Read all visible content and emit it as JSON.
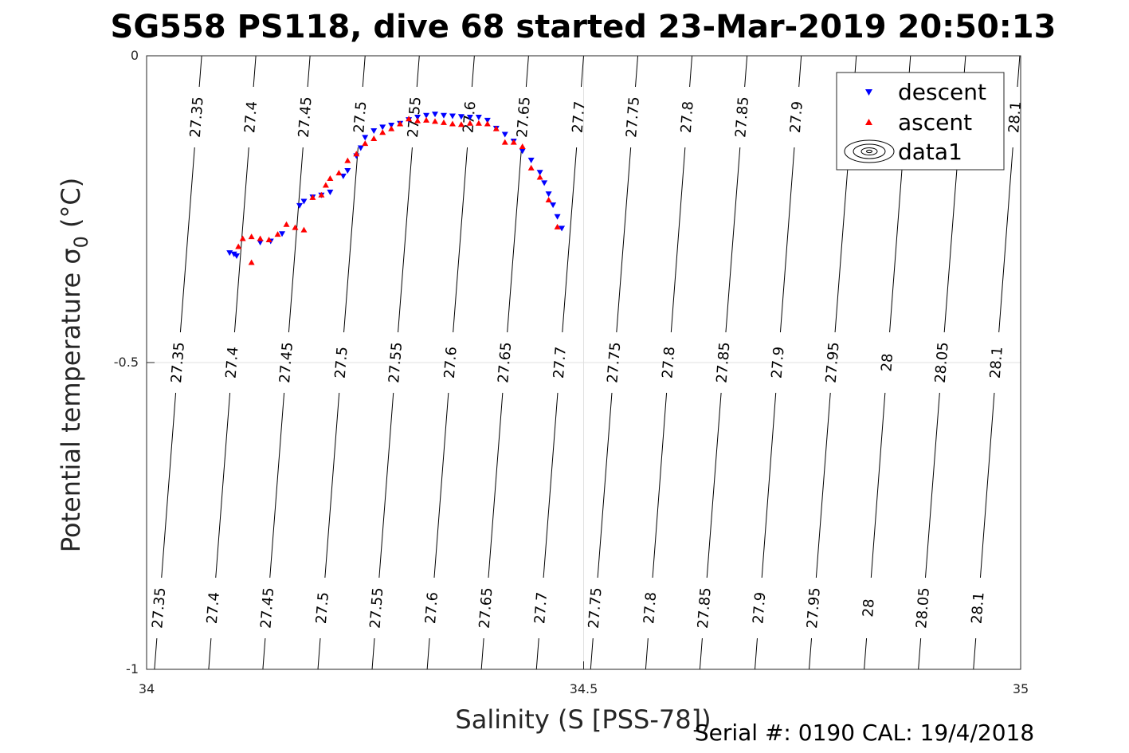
{
  "chart_data": {
    "type": "scatter",
    "title": "SG558 PS118, dive 68 started 23-Mar-2019 20:50:13",
    "xlabel": "Salinity (S [PSS-78])",
    "ylabel": "Potential temperature σ",
    "ylabel_subscript": "0",
    "ylabel_unit": "(°C)",
    "footer": "Serial #: 0190  CAL: 19/4/2018",
    "xlim": [
      34,
      35
    ],
    "ylim": [
      -1,
      0
    ],
    "xticks": [
      "34",
      "34.5",
      "35"
    ],
    "yticks": [
      "0",
      "-0.5",
      "-1"
    ],
    "grid": true,
    "legend_position": "top-right",
    "legend": [
      "descent",
      "ascent",
      "data1"
    ],
    "colors": {
      "descent": "#0000ff",
      "ascent": "#ff0000",
      "contour": "#000000",
      "grid": "#e0e0e0"
    },
    "density_contours": {
      "levels": [
        "27.35",
        "27.4",
        "27.45",
        "27.5",
        "27.55",
        "27.6",
        "27.65",
        "27.7",
        "27.75",
        "27.8",
        "27.85",
        "27.9",
        "27.95",
        "28",
        "28.05",
        "28.1"
      ],
      "salinity_at_neg1": [
        34.009,
        34.071,
        34.133,
        34.196,
        34.258,
        34.321,
        34.383,
        34.446,
        34.508,
        34.571,
        34.633,
        34.696,
        34.758,
        34.821,
        34.883,
        34.946
      ],
      "salinity_at_0": [
        34.063,
        34.125,
        34.187,
        34.25,
        34.312,
        34.375,
        34.437,
        34.5,
        34.562,
        34.624,
        34.687,
        34.749,
        34.812,
        34.874,
        34.937,
        34.999
      ]
    },
    "series": [
      {
        "name": "descent",
        "marker": "triangle-down",
        "x": [
          34.095,
          34.1,
          34.103,
          34.13,
          34.142,
          34.155,
          34.175,
          34.18,
          34.19,
          34.2,
          34.21,
          34.225,
          34.23,
          34.24,
          34.245,
          34.25,
          34.26,
          34.27,
          34.28,
          34.29,
          34.3,
          34.31,
          34.32,
          34.33,
          34.34,
          34.35,
          34.36,
          34.37,
          34.38,
          34.39,
          34.4,
          34.41,
          34.42,
          34.43,
          34.44,
          34.45,
          34.455,
          34.46,
          34.465,
          34.47,
          34.475
        ],
        "y": [
          -0.321,
          -0.323,
          -0.326,
          -0.304,
          -0.302,
          -0.29,
          -0.244,
          -0.237,
          -0.23,
          -0.227,
          -0.222,
          -0.196,
          -0.187,
          -0.163,
          -0.15,
          -0.133,
          -0.122,
          -0.116,
          -0.113,
          -0.11,
          -0.104,
          -0.1,
          -0.097,
          -0.095,
          -0.097,
          -0.098,
          -0.099,
          -0.1,
          -0.1,
          -0.105,
          -0.118,
          -0.128,
          -0.139,
          -0.155,
          -0.17,
          -0.19,
          -0.207,
          -0.225,
          -0.243,
          -0.262,
          -0.281
        ]
      },
      {
        "name": "ascent",
        "marker": "triangle-up",
        "x": [
          34.105,
          34.11,
          34.12,
          34.13,
          34.14,
          34.15,
          34.16,
          34.17,
          34.18,
          34.19,
          34.2,
          34.205,
          34.21,
          34.22,
          34.23,
          34.24,
          34.25,
          34.26,
          34.27,
          34.28,
          34.29,
          34.3,
          34.31,
          34.32,
          34.33,
          34.34,
          34.35,
          34.36,
          34.37,
          34.38,
          34.39,
          34.4,
          34.41,
          34.42,
          34.43,
          34.44,
          34.45,
          34.46,
          34.47,
          34.12
        ],
        "y": [
          -0.311,
          -0.298,
          -0.295,
          -0.298,
          -0.3,
          -0.291,
          -0.275,
          -0.28,
          -0.284,
          -0.231,
          -0.227,
          -0.211,
          -0.2,
          -0.191,
          -0.171,
          -0.16,
          -0.143,
          -0.135,
          -0.125,
          -0.119,
          -0.111,
          -0.103,
          -0.106,
          -0.105,
          -0.107,
          -0.109,
          -0.111,
          -0.112,
          -0.11,
          -0.11,
          -0.111,
          -0.119,
          -0.141,
          -0.141,
          -0.148,
          -0.183,
          -0.198,
          -0.235,
          -0.279,
          -0.337
        ]
      }
    ]
  }
}
